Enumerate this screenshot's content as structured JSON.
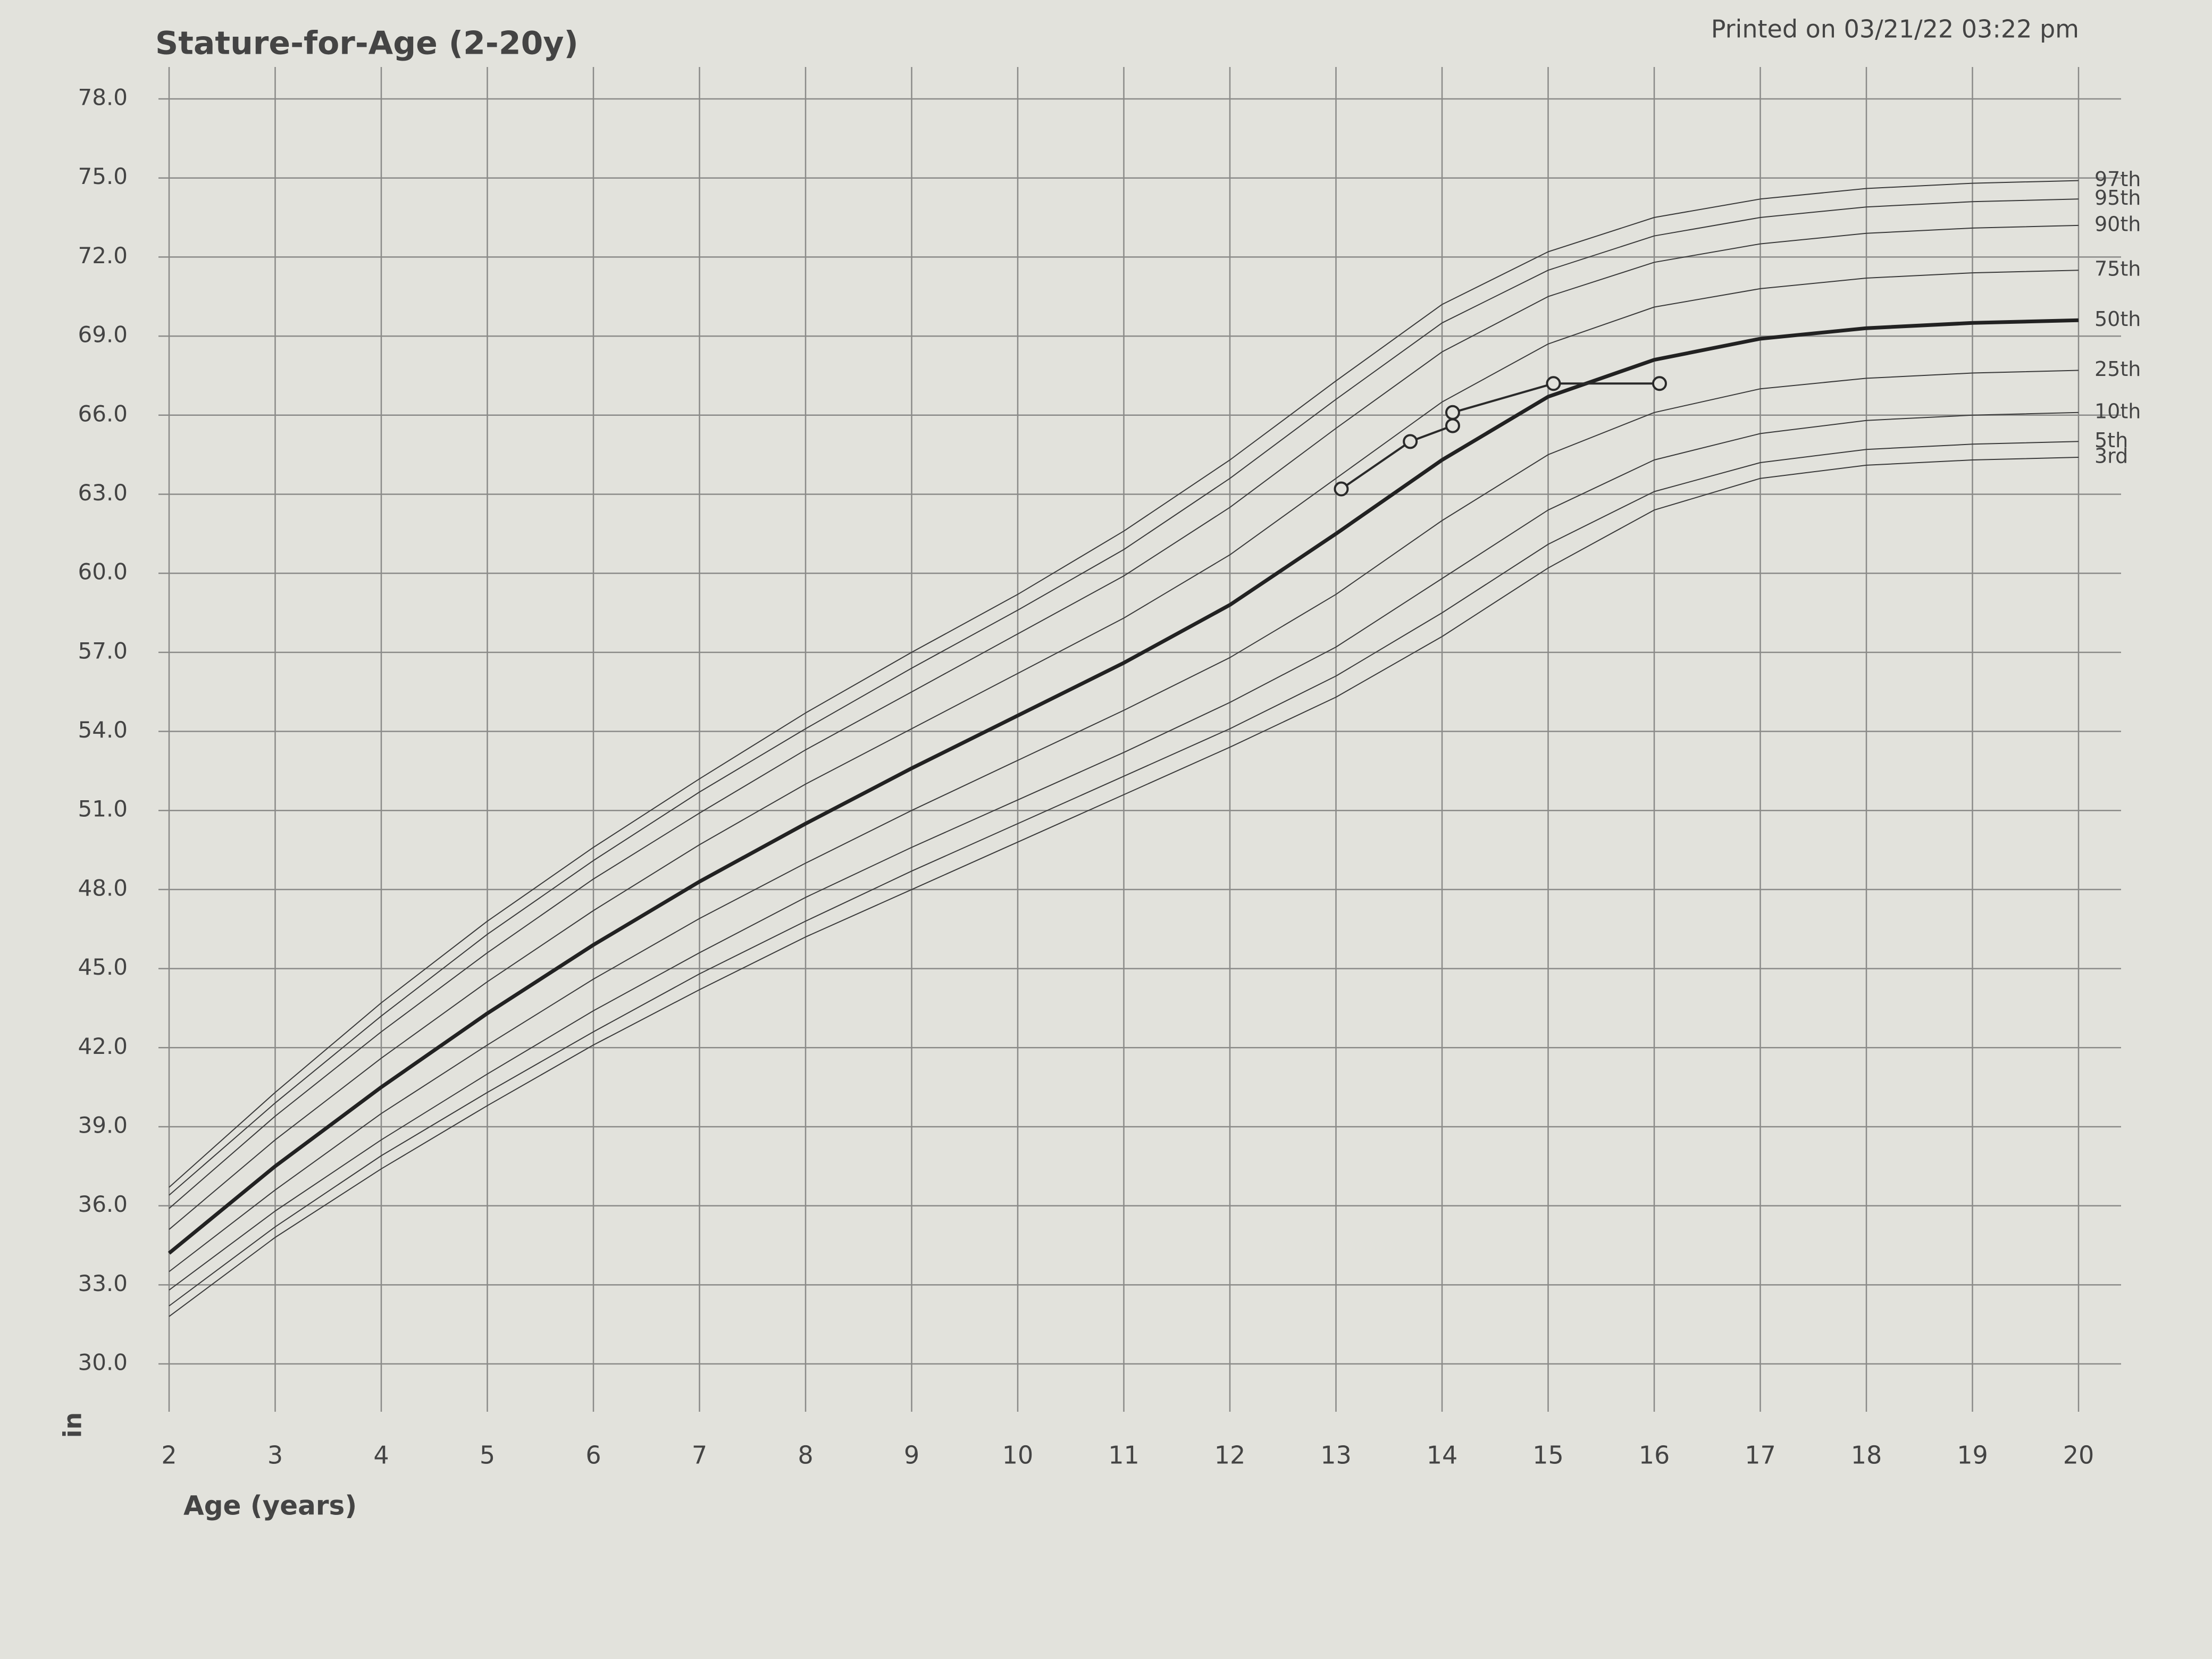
{
  "chart_data": {
    "type": "line",
    "title": "Stature-for-Age (2-20y)",
    "annotation": "Printed on 03/21/22  03:22 pm",
    "x_label": "Age (years)",
    "y_label": "in",
    "xlim": [
      2,
      20
    ],
    "xticks": [
      2,
      3,
      4,
      5,
      6,
      7,
      8,
      9,
      10,
      11,
      12,
      13,
      14,
      15,
      16,
      17,
      18,
      19,
      20
    ],
    "ylim": [
      30,
      78
    ],
    "yticks": [
      {
        "value": 30,
        "label": "30.0"
      },
      {
        "value": 33,
        "label": "33.0"
      },
      {
        "value": 36,
        "label": "36.0"
      },
      {
        "value": 39,
        "label": "39.0"
      },
      {
        "value": 42,
        "label": "42.0"
      },
      {
        "value": 45,
        "label": "45.0"
      },
      {
        "value": 48,
        "label": "48.0"
      },
      {
        "value": 51,
        "label": "51.0"
      },
      {
        "value": 54,
        "label": "54.0"
      },
      {
        "value": 57,
        "label": "57.0"
      },
      {
        "value": 60,
        "label": "60.0"
      },
      {
        "value": 63,
        "label": "63.0"
      },
      {
        "value": 66,
        "label": "66.0"
      },
      {
        "value": 69,
        "label": "69.0"
      },
      {
        "value": 72,
        "label": "72.0"
      },
      {
        "value": 75,
        "label": "75.0"
      },
      {
        "value": 78,
        "label": "78.0"
      }
    ],
    "grid": true,
    "x": [
      2,
      3,
      4,
      5,
      6,
      7,
      8,
      9,
      10,
      11,
      12,
      13,
      14,
      15,
      16,
      17,
      18,
      19,
      20
    ],
    "series": [
      {
        "name": "3rd",
        "color": "#3a3a3a",
        "line_width": 2,
        "values": [
          31.8,
          34.8,
          37.4,
          39.8,
          42.1,
          44.2,
          46.2,
          48.0,
          49.8,
          51.6,
          53.4,
          55.3,
          57.6,
          60.2,
          62.4,
          63.6,
          64.1,
          64.3,
          64.4
        ]
      },
      {
        "name": "5th",
        "color": "#3a3a3a",
        "line_width": 2,
        "values": [
          32.2,
          35.2,
          37.9,
          40.3,
          42.6,
          44.8,
          46.8,
          48.7,
          50.5,
          52.3,
          54.1,
          56.1,
          58.5,
          61.1,
          63.1,
          64.2,
          64.7,
          64.9,
          65.0
        ]
      },
      {
        "name": "10th",
        "color": "#3a3a3a",
        "line_width": 2,
        "values": [
          32.8,
          35.8,
          38.5,
          41.0,
          43.4,
          45.6,
          47.7,
          49.6,
          51.4,
          53.2,
          55.1,
          57.2,
          59.8,
          62.4,
          64.3,
          65.3,
          65.8,
          66.0,
          66.1
        ]
      },
      {
        "name": "25th",
        "color": "#3a3a3a",
        "line_width": 2,
        "values": [
          33.5,
          36.6,
          39.5,
          42.1,
          44.6,
          46.9,
          49.0,
          51.0,
          52.9,
          54.8,
          56.8,
          59.2,
          62.0,
          64.5,
          66.1,
          67.0,
          67.4,
          67.6,
          67.7
        ]
      },
      {
        "name": "50th",
        "color": "#222222",
        "line_width": 7,
        "values": [
          34.2,
          37.5,
          40.5,
          43.3,
          45.9,
          48.3,
          50.5,
          52.6,
          54.6,
          56.6,
          58.8,
          61.5,
          64.3,
          66.7,
          68.1,
          68.9,
          69.3,
          69.5,
          69.6
        ]
      },
      {
        "name": "75th",
        "color": "#3a3a3a",
        "line_width": 2,
        "values": [
          35.1,
          38.5,
          41.6,
          44.5,
          47.2,
          49.7,
          52.0,
          54.1,
          56.2,
          58.3,
          60.7,
          63.6,
          66.5,
          68.7,
          70.1,
          70.8,
          71.2,
          71.4,
          71.5
        ]
      },
      {
        "name": "90th",
        "color": "#3a3a3a",
        "line_width": 2,
        "values": [
          35.9,
          39.4,
          42.6,
          45.6,
          48.4,
          50.9,
          53.3,
          55.5,
          57.7,
          59.9,
          62.5,
          65.5,
          68.4,
          70.5,
          71.8,
          72.5,
          72.9,
          73.1,
          73.2
        ]
      },
      {
        "name": "95th",
        "color": "#3a3a3a",
        "line_width": 2,
        "values": [
          36.4,
          39.9,
          43.2,
          46.3,
          49.1,
          51.7,
          54.1,
          56.4,
          58.6,
          60.9,
          63.6,
          66.6,
          69.5,
          71.5,
          72.8,
          73.5,
          73.9,
          74.1,
          74.2
        ]
      },
      {
        "name": "97th",
        "color": "#3a3a3a",
        "line_width": 2,
        "values": [
          36.7,
          40.3,
          43.7,
          46.8,
          49.6,
          52.2,
          54.7,
          57.0,
          59.2,
          61.6,
          64.3,
          67.3,
          70.2,
          72.2,
          73.5,
          74.2,
          74.6,
          74.8,
          74.9
        ]
      },
      {
        "color": "#2a2a2a",
        "line_width": 4,
        "markers": true,
        "x": [
          13.05,
          13.7,
          14.1,
          14.1,
          15.05,
          16.05
        ],
        "values": [
          63.2,
          65.0,
          65.6,
          66.1,
          67.2,
          67.2
        ]
      }
    ]
  }
}
